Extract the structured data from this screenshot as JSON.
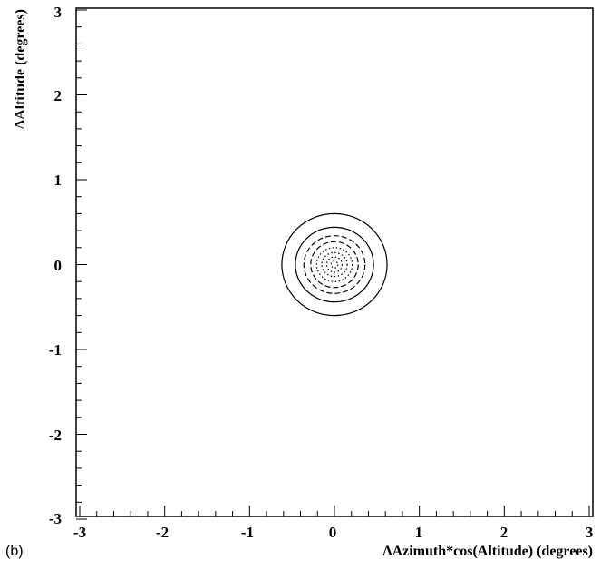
{
  "chart_data": {
    "type": "contour",
    "panel_label": "(b)",
    "xlabel": "ΔAzimuth*cos(Altitude)  (degrees)",
    "ylabel": "ΔAltitude (degrees)",
    "xlim": [
      -3,
      3
    ],
    "ylim": [
      -3,
      3
    ],
    "x_ticks": [
      -3,
      -2,
      -1,
      0,
      1,
      2,
      3
    ],
    "y_ticks": [
      -3,
      -2,
      -1,
      0,
      1,
      2,
      3
    ],
    "x_tick_labels": [
      "-3",
      "-2",
      "-1",
      "0",
      "1",
      "2",
      "3"
    ],
    "y_tick_labels": [
      "-3",
      "-2",
      "-1",
      "0",
      "1",
      "2",
      "3"
    ],
    "grid": false,
    "center": [
      0,
      0
    ],
    "contours": [
      {
        "rx": 0.62,
        "ry": 0.6,
        "style": "solid"
      },
      {
        "rx": 0.46,
        "ry": 0.44,
        "style": "solid"
      },
      {
        "rx": 0.36,
        "ry": 0.34,
        "style": "dashed"
      },
      {
        "rx": 0.28,
        "ry": 0.27,
        "style": "dashed"
      },
      {
        "rx": 0.21,
        "ry": 0.2,
        "style": "dotted"
      },
      {
        "rx": 0.15,
        "ry": 0.14,
        "style": "dotted"
      },
      {
        "rx": 0.09,
        "ry": 0.09,
        "style": "dotted"
      },
      {
        "rx": 0.04,
        "ry": 0.04,
        "style": "dotted"
      }
    ]
  }
}
